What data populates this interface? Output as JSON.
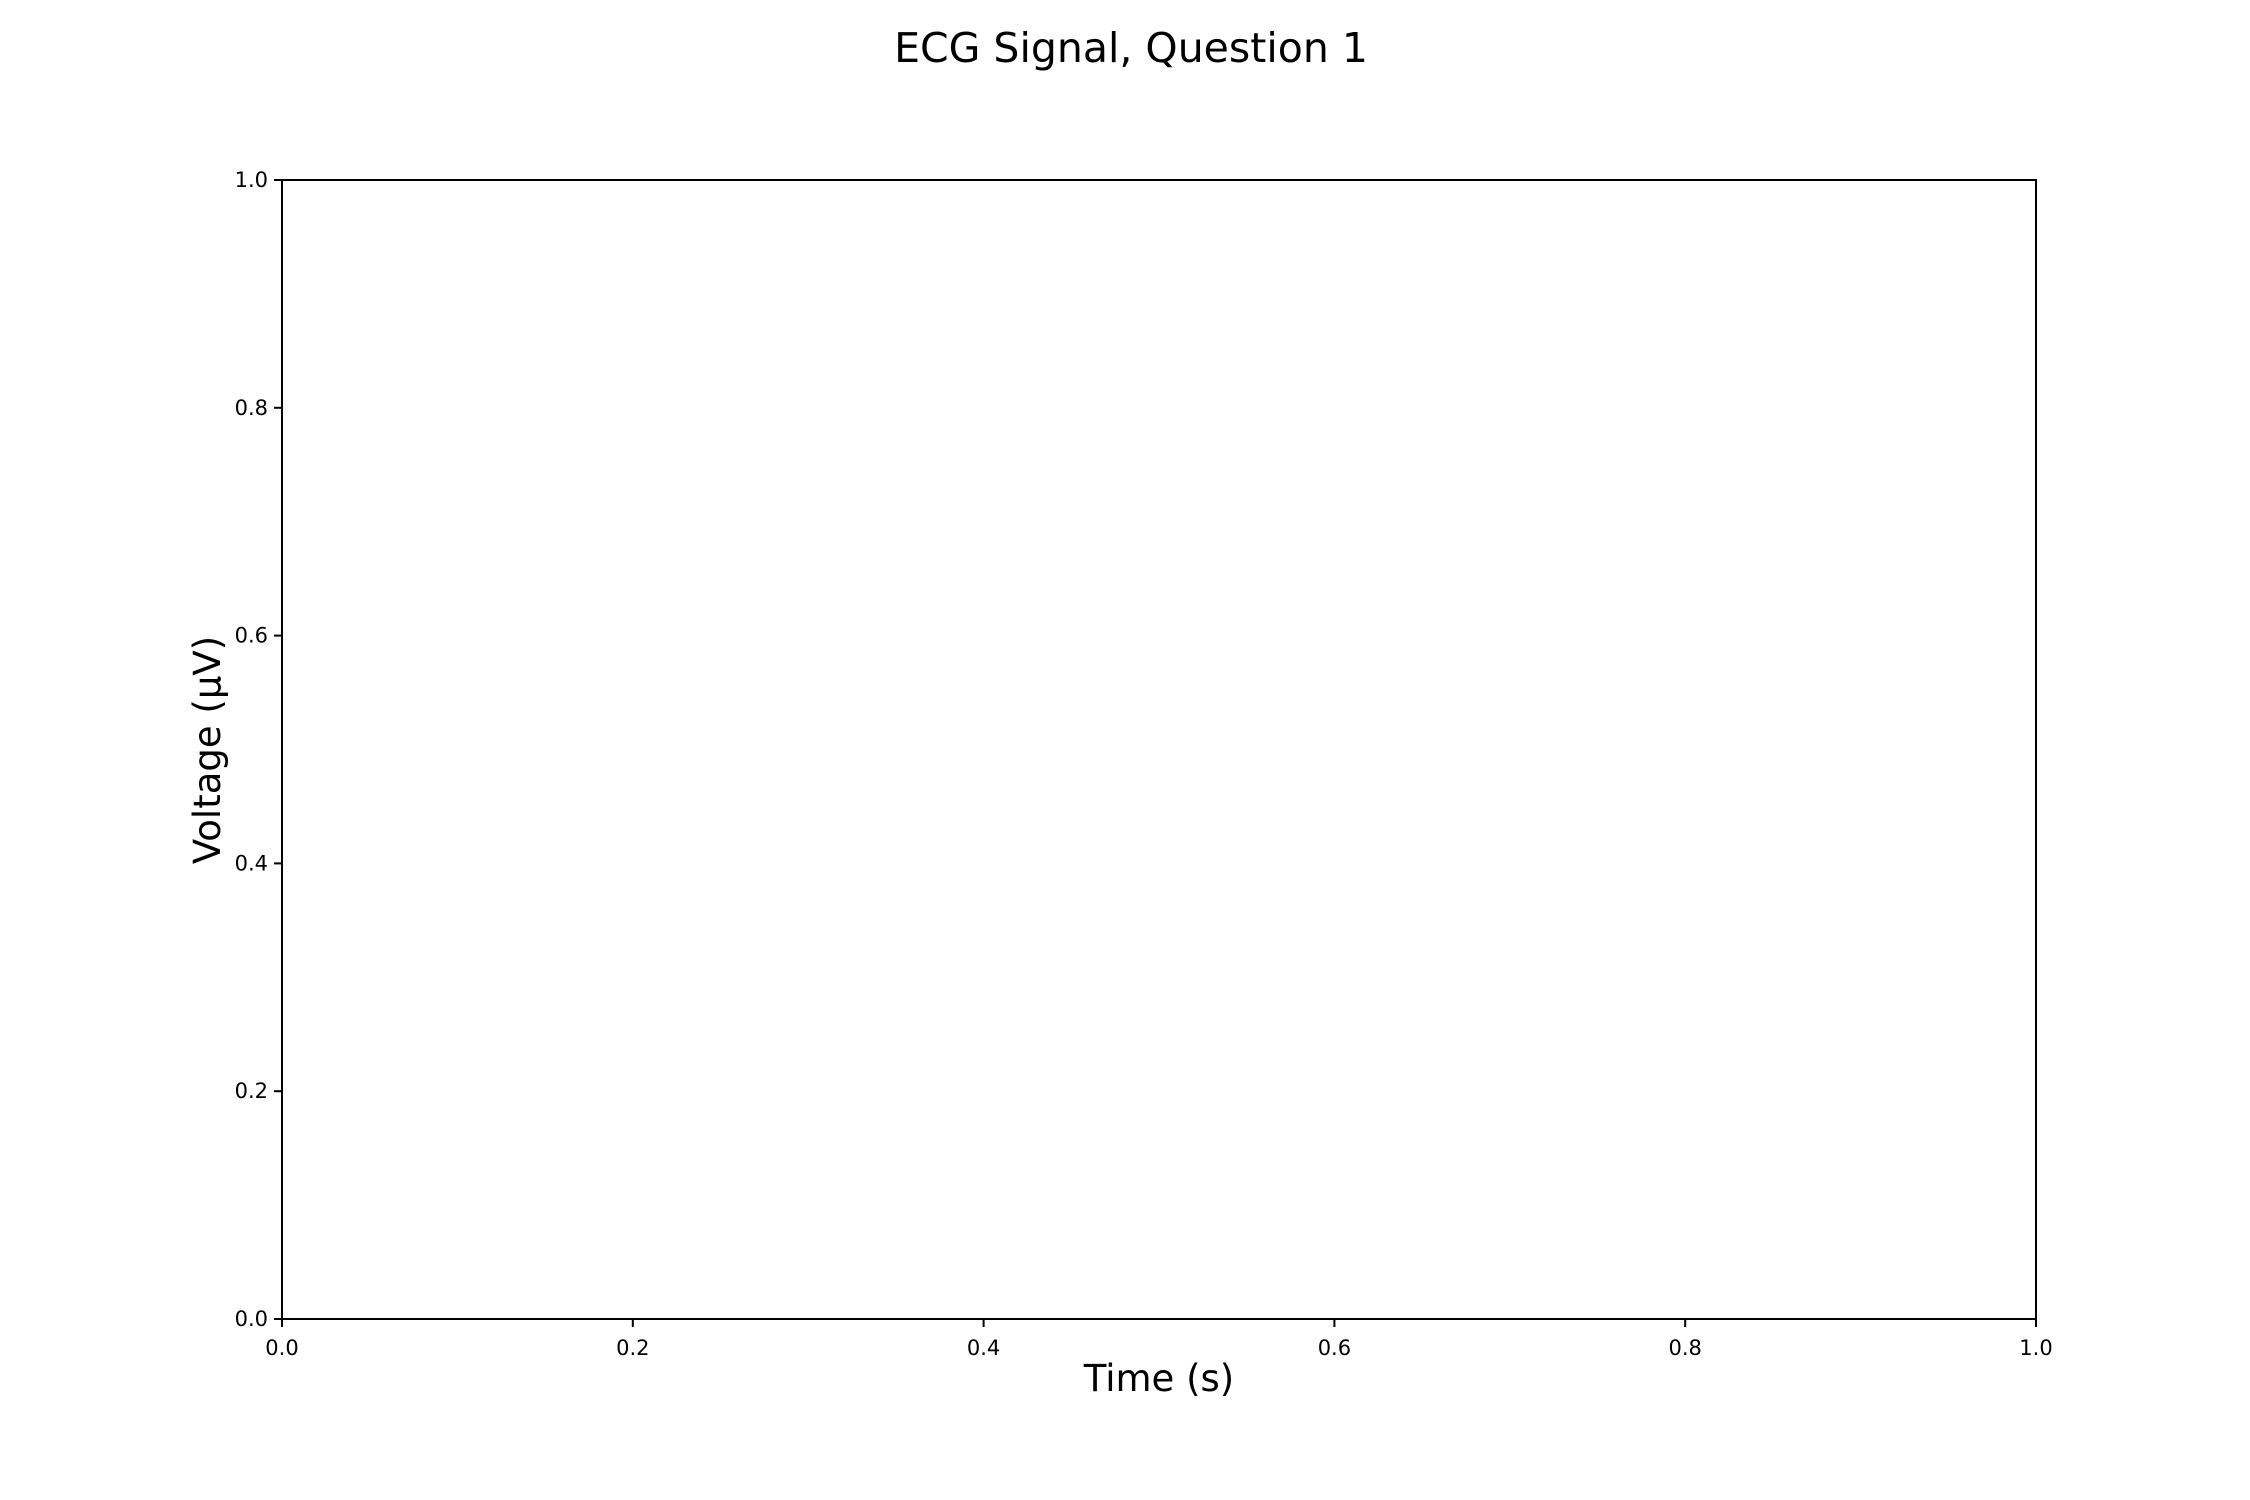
{
  "chart_data": {
    "type": "line",
    "title": "ECG Signal, Question 1",
    "xlabel": "Time (s)",
    "ylabel": "Voltage (µV)",
    "xlim": [
      0.0,
      1.0
    ],
    "ylim": [
      0.0,
      1.0
    ],
    "x_ticks": [
      0.0,
      0.2,
      0.4,
      0.6,
      0.8,
      1.0
    ],
    "x_tick_labels": [
      "0.0",
      "0.2",
      "0.4",
      "0.6",
      "0.8",
      "1.0"
    ],
    "y_ticks": [
      0.0,
      0.2,
      0.4,
      0.6,
      0.8,
      1.0
    ],
    "y_tick_labels": [
      "0.0",
      "0.2",
      "0.4",
      "0.6",
      "0.8",
      "1.0"
    ],
    "series": [],
    "grid": false,
    "legend": "none",
    "colors": {
      "background": "#ffffff",
      "axes": "#000000",
      "text": "#000000"
    }
  }
}
